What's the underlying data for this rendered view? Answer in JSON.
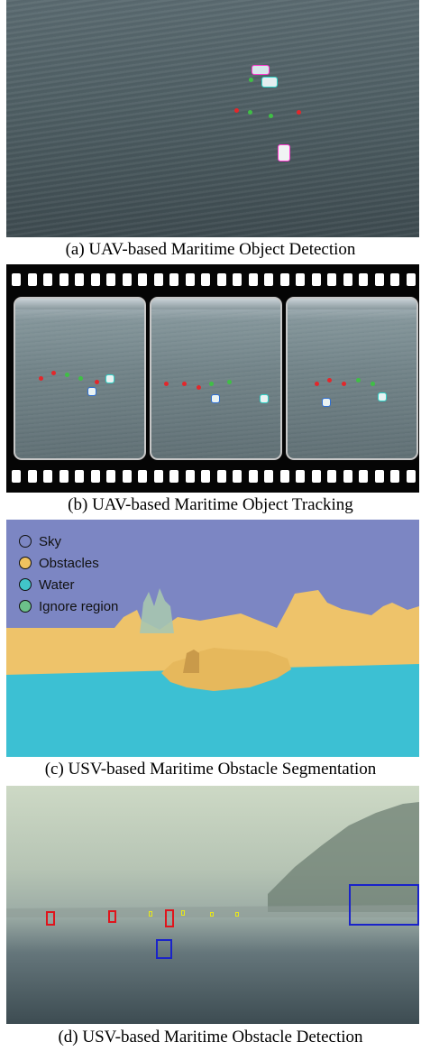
{
  "captions": {
    "a": "(a) UAV-based Maritime Object Detection",
    "b": "(b) UAV-based Maritime Object Tracking",
    "c": "(c) USV-based Maritime Obstacle Segmentation",
    "d": "(d) USV-based Maritime Obstacle Detection"
  },
  "segmentation_legend": [
    {
      "label": "Sky",
      "color": "#7c86c3"
    },
    {
      "label": "Obstacles",
      "color": "#f0c25f"
    },
    {
      "label": "Water",
      "color": "#41c5c9"
    },
    {
      "label": "Ignore region",
      "color": "#6cc18a"
    }
  ],
  "colors": {
    "detection_box": "#e0141c",
    "obstacle_box": "#1a23c9",
    "small_box": "#e8e81a"
  }
}
